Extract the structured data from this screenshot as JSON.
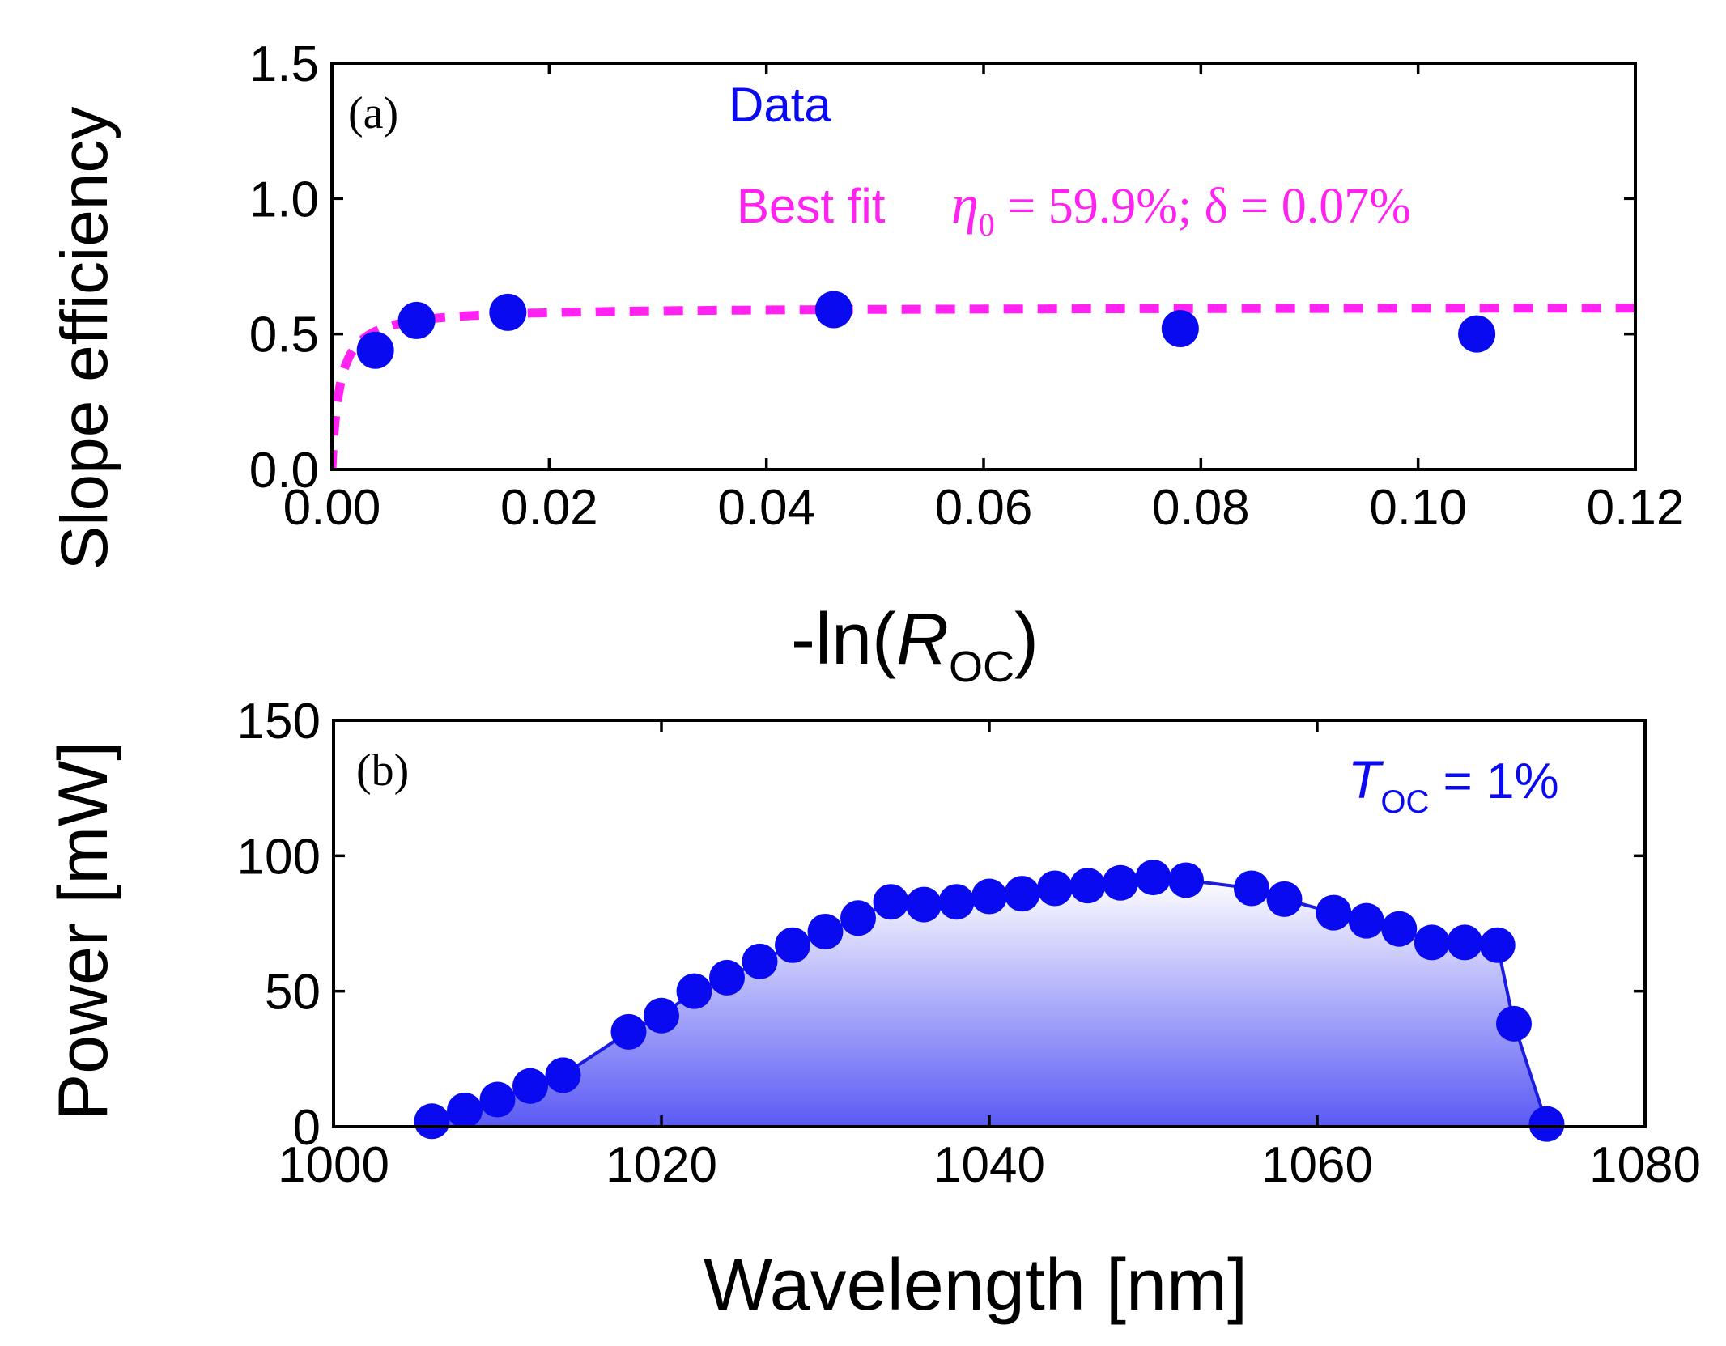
{
  "colors": {
    "data": "#0a0af0",
    "fit": "#ff22f0",
    "line_b": "#1c1ce0",
    "fill_top": "#ffffff",
    "fill_bottom": "#5a5af5",
    "axis": "#000000"
  },
  "chart_data": [
    {
      "type": "scatter",
      "panel_label": "(a)",
      "ylabel": "Slope efficiency",
      "xlabel_prefix": "-ln(",
      "xlabel_var": "R",
      "xlabel_sub": "OC",
      "xlabel_suffix": ")",
      "xlim": [
        0.0,
        0.12
      ],
      "ylim": [
        0.0,
        1.5
      ],
      "xticks": [
        "0.00",
        "0.02",
        "0.04",
        "0.06",
        "0.08",
        "0.10",
        "0.12"
      ],
      "yticks": [
        "0.0",
        "0.5",
        "1.0",
        "1.5"
      ],
      "series": [
        {
          "name": "Data",
          "legend": "Data",
          "x": [
            0.004,
            0.0078,
            0.0162,
            0.0462,
            0.0781,
            0.1054
          ],
          "y": [
            0.44,
            0.55,
            0.58,
            0.59,
            0.52,
            0.5
          ]
        },
        {
          "name": "Best fit",
          "legend": "Best fit",
          "style": "dashed",
          "eta0": 0.599,
          "delta": 0.0007
        }
      ],
      "fit_annotation": {
        "eta": "η",
        "eta_sub": "0",
        "text": " = 59.9%; δ = 0.07%"
      }
    },
    {
      "type": "area",
      "panel_label": "(b)",
      "ylabel": "Power [mW]",
      "xlabel": "Wavelength [nm]",
      "xlim": [
        1000,
        1080
      ],
      "ylim": [
        0,
        150
      ],
      "xticks": [
        "1000",
        "1020",
        "1040",
        "1060",
        "1080"
      ],
      "yticks": [
        "0",
        "50",
        "100",
        "150"
      ],
      "annotation": {
        "var": "T",
        "sub": "OC",
        "text": " = 1%"
      },
      "series": [
        {
          "name": "Power",
          "x": [
            1006,
            1008,
            1010,
            1012,
            1014,
            1018,
            1020,
            1022,
            1024,
            1026,
            1028,
            1030,
            1032,
            1034,
            1036,
            1038,
            1040,
            1042,
            1044,
            1046,
            1048,
            1050,
            1052,
            1056,
            1058,
            1061,
            1063,
            1065,
            1067,
            1069,
            1071,
            1072,
            1074
          ],
          "y": [
            2,
            6,
            10,
            15,
            19,
            35,
            41,
            50,
            55,
            61,
            67,
            72,
            77,
            83,
            82,
            83,
            85,
            86,
            88,
            89,
            90,
            92,
            91,
            88,
            84,
            79,
            76,
            73,
            68,
            68,
            67,
            38,
            1
          ]
        }
      ]
    }
  ]
}
